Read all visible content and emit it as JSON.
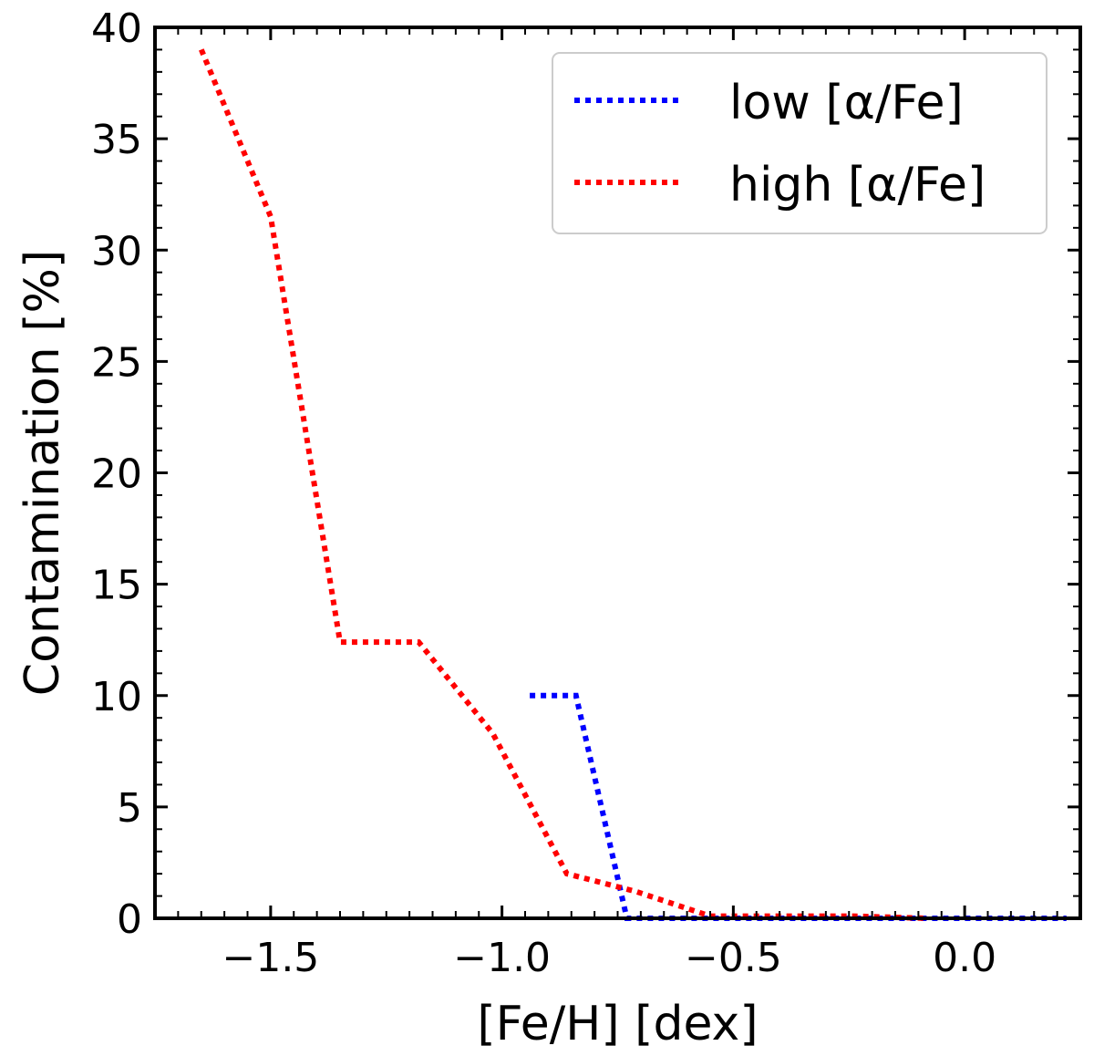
{
  "chart_data": {
    "type": "line",
    "xlabel": "[Fe/H] [dex]",
    "ylabel": "Contamination [%]",
    "xlim": [
      -1.75,
      0.25
    ],
    "ylim": [
      0,
      40
    ],
    "x_ticks": [
      -1.5,
      -1.0,
      -0.5,
      0.0
    ],
    "x_tick_labels": [
      "−1.5",
      "−1.0",
      "−0.5",
      "0.0"
    ],
    "y_ticks": [
      0,
      5,
      10,
      15,
      20,
      25,
      30,
      35,
      40
    ],
    "y_tick_labels": [
      "0",
      "5",
      "10",
      "15",
      "20",
      "25",
      "30",
      "35",
      "40"
    ],
    "grid": false,
    "legend_position": "top-right",
    "series": [
      {
        "name": "low [α/Fe]",
        "color": "#0000ff",
        "style": "dotted",
        "x": [
          -0.94,
          -0.84,
          -0.73,
          -0.62,
          -0.51,
          -0.4,
          -0.29,
          -0.18,
          -0.07,
          0.04,
          0.15,
          0.22
        ],
        "y": [
          10.0,
          10.0,
          0.0,
          0.0,
          0.0,
          0.0,
          0.0,
          0.0,
          0.0,
          0.0,
          0.0,
          0.0
        ]
      },
      {
        "name": "high [α/Fe]",
        "color": "#ff0000",
        "style": "dotted",
        "x": [
          -1.65,
          -1.5,
          -1.35,
          -1.18,
          -1.02,
          -0.86,
          -0.71,
          -0.55,
          -0.39,
          -0.24,
          -0.08
        ],
        "y": [
          39.0,
          31.5,
          12.4,
          12.4,
          8.3,
          2.0,
          1.2,
          0.1,
          0.1,
          0.1,
          0.0
        ]
      }
    ]
  }
}
